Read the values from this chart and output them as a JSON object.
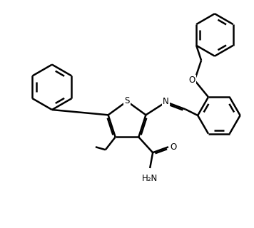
{
  "bg_color": "#ffffff",
  "line_color": "#000000",
  "line_width": 1.8,
  "figsize": [
    3.56,
    3.2
  ],
  "dpi": 100,
  "S_label": "S",
  "N_label": "N",
  "O_label": "O",
  "O2_label": "O",
  "H2N_label": "H₂N"
}
